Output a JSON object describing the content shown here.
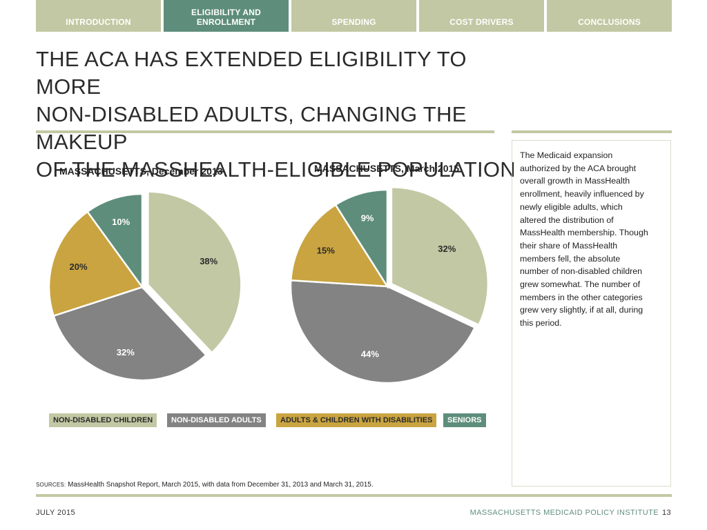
{
  "nav": {
    "tabs": [
      {
        "label_lines": [
          "INTRODUCTION"
        ],
        "active": false
      },
      {
        "label_lines": [
          "ELIGIBILITY AND",
          "ENROLLMENT"
        ],
        "active": true
      },
      {
        "label_lines": [
          "SPENDING"
        ],
        "active": false
      },
      {
        "label_lines": [
          "COST DRIVERS"
        ],
        "active": false
      },
      {
        "label_lines": [
          "CONCLUSIONS"
        ],
        "active": false
      }
    ]
  },
  "title_lines": [
    "THE ACA HAS EXTENDED ELIGIBILITY TO MORE",
    "NON-DISABLED ADULTS, CHANGING THE MAKEUP",
    "OF THE MASSHEALTH-ELIGIBLE POPULATION"
  ],
  "colors": {
    "non_disabled_children": "#c2c8a3",
    "non_disabled_adults": "#838383",
    "adults_children_disabilities": "#c9a440",
    "seniors": "#5e8d7b",
    "accent": "#5e8d7b",
    "rule": "#c2c8a3"
  },
  "chart_data": [
    {
      "type": "pie",
      "title": "MASSACHUSETTS, December 2013",
      "categories": [
        "NON-DISABLED CHILDREN",
        "NON-DISABLED ADULTS",
        "ADULTS & CHILDREN WITH DISABILITIES",
        "SENIORS"
      ],
      "values": [
        38,
        32,
        20,
        10
      ],
      "labels": [
        "38%",
        "32%",
        "20%",
        "10%"
      ],
      "exploded_slice": "NON-DISABLED CHILDREN",
      "legend_position": "bottom"
    },
    {
      "type": "pie",
      "title": "MASSACHUSETTS, March 2015",
      "categories": [
        "NON-DISABLED CHILDREN",
        "NON-DISABLED ADULTS",
        "ADULTS & CHILDREN WITH DISABILITIES",
        "SENIORS"
      ],
      "values": [
        32,
        44,
        15,
        9
      ],
      "labels": [
        "32%",
        "44%",
        "15%",
        "9%"
      ],
      "exploded_slice": "NON-DISABLED CHILDREN",
      "legend_position": "bottom"
    }
  ],
  "legend": [
    {
      "label": "NON-DISABLED CHILDREN",
      "color_key": "non_disabled_children"
    },
    {
      "label": "NON-DISABLED ADULTS",
      "color_key": "non_disabled_adults"
    },
    {
      "label": "ADULTS & CHILDREN WITH DISABILITIES",
      "color_key": "adults_children_disabilities"
    },
    {
      "label": "SENIORS",
      "color_key": "seniors"
    }
  ],
  "note_lines": [
    "The Medicaid expansion",
    "authorized by the ACA brought",
    "overall growth in MassHealth",
    "enrollment, heavily influenced by",
    "newly eligible adults, which",
    "altered the distribution of",
    "MassHealth membership. Though",
    "their share of MassHealth",
    "members fell, the absolute",
    "number of non-disabled children",
    "grew somewhat. The number of",
    "members in the other categories",
    "grew very slightly, if at all, during",
    "this period."
  ],
  "sources": {
    "label": "SOURCES:",
    "text": " MassHealth Snapshot Report, March 2015, with data from December 31, 2013 and March 31, 2015."
  },
  "footer": {
    "date": "JULY 2015",
    "org": "MASSACHUSETTS MEDICAID POLICY INSTITUTE",
    "page": "13"
  }
}
